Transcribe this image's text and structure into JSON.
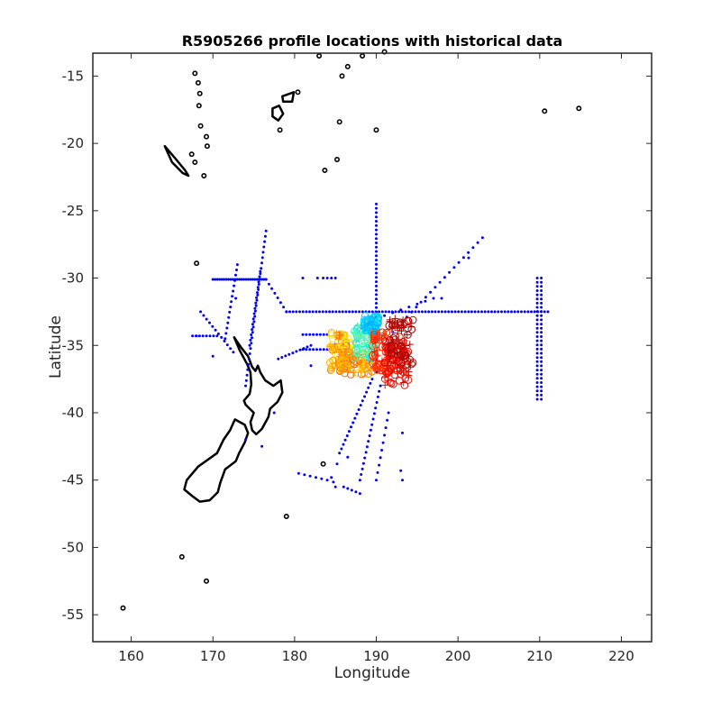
{
  "chart_data": {
    "type": "scatter",
    "title": "R5905266 profile locations with historical data",
    "xlabel": "Longitude",
    "ylabel": "Latitude",
    "xlim": [
      155.3,
      223.7
    ],
    "ylim": [
      -57,
      -13.3
    ],
    "xticks": [
      160,
      170,
      180,
      190,
      200,
      210,
      220
    ],
    "yticks": [
      -15,
      -20,
      -25,
      -30,
      -35,
      -40,
      -45,
      -50,
      -55
    ],
    "grid": false,
    "legend": "none",
    "colors": {
      "historical": "#0000ff",
      "coastline": "#000000",
      "profile_colormap": [
        "#00008f",
        "#0050ff",
        "#00dfff",
        "#70ff8f",
        "#ffef00",
        "#ff8000",
        "#ff1000",
        "#8f0000"
      ]
    },
    "historical_tracks": [
      {
        "from": [
          190.0,
          -24.5
        ],
        "to": [
          190.0,
          -37.0
        ],
        "n": 40
      },
      {
        "from": [
          179.0,
          -32.5
        ],
        "to": [
          211.0,
          -32.5
        ],
        "n": 80
      },
      {
        "from": [
          209.7,
          -30.0
        ],
        "to": [
          209.7,
          -39.0
        ],
        "n": 30
      },
      {
        "from": [
          210.2,
          -30.0
        ],
        "to": [
          210.2,
          -39.0
        ],
        "n": 30
      },
      {
        "from": [
          170.0,
          -30.1
        ],
        "to": [
          176.5,
          -30.1
        ],
        "n": 25
      },
      {
        "from": [
          176.5,
          -30.1
        ],
        "to": [
          179.0,
          -32.5
        ],
        "n": 8
      },
      {
        "from": [
          176.5,
          -26.5
        ],
        "to": [
          174.0,
          -38.0
        ],
        "n": 30
      },
      {
        "from": [
          175.8,
          -29.5
        ],
        "to": [
          174.5,
          -35.0
        ],
        "n": 15
      },
      {
        "from": [
          173.0,
          -29.0
        ],
        "to": [
          171.5,
          -34.5
        ],
        "n": 15
      },
      {
        "from": [
          168.5,
          -32.5
        ],
        "to": [
          172.5,
          -35.5
        ],
        "n": 12
      },
      {
        "from": [
          167.5,
          -34.3
        ],
        "to": [
          170.5,
          -34.3
        ],
        "n": 8
      },
      {
        "from": [
          178.0,
          -36.0
        ],
        "to": [
          182.0,
          -35.0
        ],
        "n": 10
      },
      {
        "from": [
          181.0,
          -34.2
        ],
        "to": [
          184.0,
          -34.2
        ],
        "n": 8
      },
      {
        "from": [
          181.0,
          -35.3
        ],
        "to": [
          184.0,
          -35.3
        ],
        "n": 8
      },
      {
        "from": [
          189.5,
          -37.5
        ],
        "to": [
          185.5,
          -43.0
        ],
        "n": 18
      },
      {
        "from": [
          190.5,
          -38.0
        ],
        "to": [
          188.0,
          -45.0
        ],
        "n": 18
      },
      {
        "from": [
          191.5,
          -40.0
        ],
        "to": [
          190.0,
          -45.0
        ],
        "n": 10
      },
      {
        "from": [
          186.0,
          -45.5
        ],
        "to": [
          188.0,
          -46.0
        ],
        "n": 5
      },
      {
        "from": [
          184.5,
          -44.8
        ],
        "to": [
          185.0,
          -45.5
        ],
        "n": 3
      },
      {
        "from": [
          180.5,
          -44.5
        ],
        "to": [
          184.0,
          -45.0
        ],
        "n": 6
      },
      {
        "from": [
          192.0,
          -34.0
        ],
        "to": [
          203.0,
          -27.0
        ],
        "n": 20
      },
      {
        "from": [
          183.5,
          -30.0
        ],
        "to": [
          185.0,
          -30.0
        ],
        "n": 4
      },
      {
        "from": [
          190.0,
          -33.0
        ],
        "to": [
          197.0,
          -31.5
        ],
        "n": 8
      }
    ],
    "historical_points": [
      [
        182.8,
        -30.0
      ],
      [
        168.0,
        -34.3
      ],
      [
        177.5,
        -40.0
      ],
      [
        176.0,
        -42.5
      ],
      [
        182.0,
        -36.5
      ],
      [
        193.2,
        -41.5
      ],
      [
        193.0,
        -44.3
      ],
      [
        193.2,
        -45.0
      ],
      [
        201.3,
        -28.5
      ],
      [
        198.0,
        -31.5
      ],
      [
        170.0,
        -35.8
      ],
      [
        174.0,
        -42.0
      ],
      [
        172.8,
        -31.5
      ],
      [
        181.0,
        -30.0
      ],
      [
        186.5,
        -43.3
      ],
      [
        185.2,
        -43.8
      ]
    ],
    "profile_clusters": [
      {
        "x": [
          184.3,
          187.0
        ],
        "y": [
          -34.0,
          -37.0
        ],
        "c": [
          0.55,
          0.75
        ]
      },
      {
        "x": [
          185.5,
          189.5
        ],
        "y": [
          -35.5,
          -37.2
        ],
        "c": [
          0.62,
          0.78
        ]
      },
      {
        "x": [
          187.3,
          190.0
        ],
        "y": [
          -33.5,
          -36.0
        ],
        "c": [
          0.3,
          0.45
        ]
      },
      {
        "x": [
          188.5,
          190.3
        ],
        "y": [
          -32.8,
          -34.0
        ],
        "c": [
          0.22,
          0.32
        ]
      },
      {
        "x": [
          189.5,
          192.0
        ],
        "y": [
          -34.0,
          -37.0
        ],
        "c": [
          0.78,
          0.86
        ]
      },
      {
        "x": [
          191.0,
          194.0
        ],
        "y": [
          -35.0,
          -38.0
        ],
        "c": [
          0.86,
          0.92
        ]
      },
      {
        "x": [
          191.5,
          194.5
        ],
        "y": [
          -33.0,
          -36.5
        ],
        "c": [
          0.9,
          1.0
        ]
      }
    ]
  }
}
